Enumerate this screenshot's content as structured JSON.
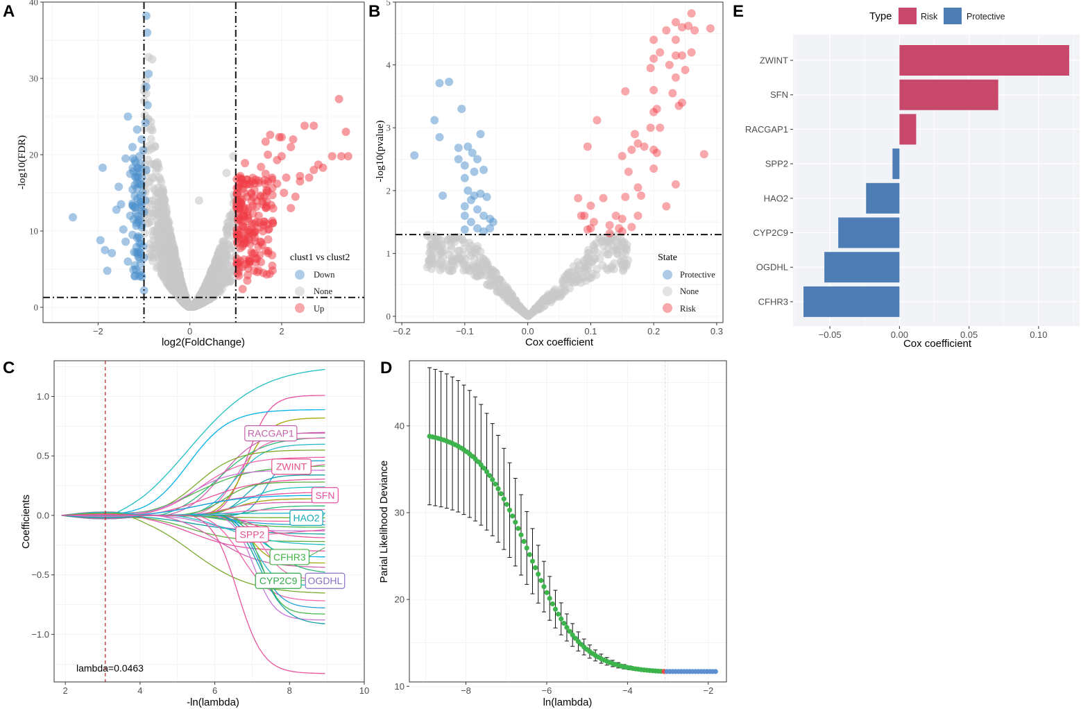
{
  "colors": {
    "down": "#4c8fcb",
    "up": "#ef3b45",
    "none": "#c8c8c8",
    "risk": "#c8486c",
    "protective": "#4e7db5",
    "cv_point": "#3cb44b",
    "cv_point_tail": "#5b8fd0",
    "cv_min": "#ef4b4b",
    "lambda_line": "#c0302e",
    "panel_bg_e": "#f1f3f6"
  },
  "chart_data": [
    {
      "panel": "A",
      "type": "scatter",
      "subtype": "volcano",
      "xlabel": "log2(FoldChange)",
      "ylabel": "-log10(FDR)",
      "xlim": [
        -3.2,
        3.8
      ],
      "ylim": [
        -2,
        40
      ],
      "xticks": [
        -2,
        0,
        2
      ],
      "yticks": [
        0,
        10,
        20,
        30,
        40
      ],
      "vlines": [
        -1,
        1
      ],
      "hline": 1.3,
      "legend": {
        "title": "clust1 vs clust2",
        "items": [
          "Down",
          "None",
          "Up"
        ]
      },
      "down_points": [
        [
          -2.55,
          11.8
        ],
        [
          -1.9,
          18.3
        ],
        [
          -1.95,
          8.8
        ],
        [
          -1.85,
          7.5
        ],
        [
          -1.8,
          4.8
        ],
        [
          -1.7,
          7.1
        ],
        [
          -1.6,
          12.8
        ],
        [
          -1.55,
          15.8
        ],
        [
          -1.5,
          13.5
        ],
        [
          -1.45,
          10.2
        ],
        [
          -1.4,
          19.5
        ],
        [
          -1.4,
          8.6
        ],
        [
          -1.35,
          6.0
        ],
        [
          -1.35,
          25.0
        ],
        [
          -1.3,
          17.5
        ],
        [
          -1.3,
          12.0
        ],
        [
          -1.25,
          21.0
        ],
        [
          -1.25,
          9.5
        ],
        [
          -1.2,
          14.6
        ],
        [
          -1.2,
          5.5
        ],
        [
          -1.15,
          23.3
        ],
        [
          -1.15,
          16.3
        ],
        [
          -1.12,
          11.2
        ],
        [
          -1.1,
          19.8
        ],
        [
          -1.1,
          7.2
        ],
        [
          -1.08,
          13.7
        ],
        [
          -1.05,
          22.0
        ],
        [
          -1.05,
          17.0
        ],
        [
          -1.05,
          10.5
        ],
        [
          -1.05,
          4.0
        ],
        [
          -1.03,
          15.0
        ],
        [
          -1.02,
          20.6
        ],
        [
          -1.02,
          8.0
        ],
        [
          -1.0,
          12.5
        ],
        [
          -0.95,
          38.2
        ],
        [
          -0.93,
          36.0
        ],
        [
          -0.9,
          30.6
        ],
        [
          -0.95,
          28.9
        ],
        [
          -0.92,
          26.5
        ],
        [
          -0.97,
          24.2
        ],
        [
          -0.95,
          18.0
        ],
        [
          -0.97,
          14.0
        ],
        [
          -1.0,
          6.5
        ],
        [
          -1.0,
          2.2
        ]
      ],
      "up_points": [
        [
          3.25,
          27.3
        ],
        [
          3.4,
          23.0
        ],
        [
          2.5,
          23.8
        ],
        [
          2.7,
          23.8
        ],
        [
          3.45,
          19.8
        ],
        [
          3.3,
          19.8
        ],
        [
          3.1,
          19.8
        ],
        [
          2.9,
          18.3
        ],
        [
          2.8,
          18.7
        ],
        [
          2.7,
          18.0
        ],
        [
          2.6,
          17.0
        ],
        [
          2.4,
          17.2
        ],
        [
          2.4,
          16.5
        ],
        [
          2.25,
          22.0
        ],
        [
          2.2,
          21.0
        ],
        [
          2.0,
          22.3
        ],
        [
          1.95,
          22.3
        ],
        [
          1.75,
          22.6
        ],
        [
          1.65,
          21.7
        ],
        [
          1.7,
          20.0
        ],
        [
          1.9,
          19.3
        ],
        [
          2.0,
          19.8
        ],
        [
          2.1,
          17.0
        ],
        [
          2.3,
          14.5
        ],
        [
          2.2,
          13.0
        ],
        [
          2.05,
          15.0
        ],
        [
          1.9,
          16.2
        ],
        [
          1.8,
          14.7
        ],
        [
          1.7,
          16.5
        ],
        [
          1.6,
          13.5
        ],
        [
          1.5,
          12.0
        ],
        [
          1.6,
          10.8
        ],
        [
          1.4,
          9.8
        ],
        [
          1.4,
          4.8
        ],
        [
          1.6,
          4.5
        ],
        [
          1.3,
          6.0
        ],
        [
          1.25,
          3.5
        ],
        [
          1.2,
          10.5
        ],
        [
          1.15,
          2.4
        ],
        [
          1.1,
          11.5
        ],
        [
          1.05,
          15.7
        ],
        [
          1.08,
          9.5
        ],
        [
          1.02,
          13.0
        ],
        [
          1.15,
          8.0
        ],
        [
          1.25,
          14.5
        ],
        [
          1.35,
          16.5
        ],
        [
          1.45,
          11.2
        ],
        [
          1.55,
          18.4
        ],
        [
          1.65,
          17.5
        ],
        [
          1.2,
          18.9
        ],
        [
          1.1,
          17.2
        ]
      ]
    },
    {
      "panel": "B",
      "type": "scatter",
      "subtype": "volcano",
      "xlabel": "Cox coefficient",
      "ylabel": "-log10(pvalue)",
      "xlim": [
        -0.21,
        0.31
      ],
      "ylim": [
        -0.1,
        5.0
      ],
      "xticks": [
        -0.2,
        -0.1,
        0.0,
        0.1,
        0.2,
        0.3
      ],
      "yticks": [
        0,
        1,
        2,
        3,
        4,
        5
      ],
      "hline": 1.3,
      "legend": {
        "title": "State",
        "items": [
          "Protective",
          "None",
          "Risk"
        ]
      },
      "protective_points": [
        [
          -0.18,
          2.56
        ],
        [
          -0.14,
          3.71
        ],
        [
          -0.125,
          3.73
        ],
        [
          -0.105,
          3.3
        ],
        [
          -0.148,
          3.12
        ],
        [
          -0.14,
          2.85
        ],
        [
          -0.135,
          1.92
        ],
        [
          -0.11,
          2.68
        ],
        [
          -0.095,
          2.7
        ],
        [
          -0.11,
          2.5
        ],
        [
          -0.1,
          2.4
        ],
        [
          -0.088,
          2.6
        ],
        [
          -0.075,
          2.9
        ],
        [
          -0.08,
          2.5
        ],
        [
          -0.07,
          2.33
        ],
        [
          -0.085,
          2.3
        ],
        [
          -0.1,
          2.2
        ],
        [
          -0.095,
          2.0
        ],
        [
          -0.085,
          1.92
        ],
        [
          -0.075,
          1.95
        ],
        [
          -0.065,
          1.9
        ],
        [
          -0.09,
          1.85
        ],
        [
          -0.1,
          1.75
        ],
        [
          -0.08,
          1.7
        ],
        [
          -0.07,
          1.6
        ],
        [
          -0.06,
          1.55
        ],
        [
          -0.1,
          1.6
        ],
        [
          -0.09,
          1.5
        ],
        [
          -0.08,
          1.4
        ],
        [
          -0.07,
          1.35
        ],
        [
          -0.055,
          1.5
        ],
        [
          -0.06,
          1.4
        ],
        [
          -0.1,
          1.38
        ]
      ],
      "risk_points": [
        [
          0.26,
          4.82
        ],
        [
          0.29,
          4.58
        ],
        [
          0.245,
          4.6
        ],
        [
          0.235,
          4.68
        ],
        [
          0.265,
          4.55
        ],
        [
          0.255,
          4.62
        ],
        [
          0.22,
          4.55
        ],
        [
          0.2,
          4.4
        ],
        [
          0.235,
          4.4
        ],
        [
          0.2,
          4.1
        ],
        [
          0.21,
          4.2
        ],
        [
          0.235,
          4.15
        ],
        [
          0.245,
          4.15
        ],
        [
          0.26,
          4.2
        ],
        [
          0.195,
          3.95
        ],
        [
          0.225,
          4.0
        ],
        [
          0.25,
          3.92
        ],
        [
          0.235,
          3.8
        ],
        [
          0.2,
          3.6
        ],
        [
          0.155,
          3.58
        ],
        [
          0.23,
          3.55
        ],
        [
          0.245,
          3.4
        ],
        [
          0.24,
          3.35
        ],
        [
          0.2,
          3.25
        ],
        [
          0.205,
          3.3
        ],
        [
          0.21,
          3.0
        ],
        [
          0.195,
          3.0
        ],
        [
          0.11,
          3.12
        ],
        [
          0.17,
          2.9
        ],
        [
          0.175,
          2.75
        ],
        [
          0.185,
          2.7
        ],
        [
          0.165,
          2.65
        ],
        [
          0.2,
          2.65
        ],
        [
          0.095,
          2.7
        ],
        [
          0.205,
          2.6
        ],
        [
          0.28,
          2.58
        ],
        [
          0.15,
          2.55
        ],
        [
          0.2,
          2.35
        ],
        [
          0.16,
          2.3
        ],
        [
          0.235,
          2.1
        ],
        [
          0.175,
          2.05
        ],
        [
          0.08,
          1.88
        ],
        [
          0.12,
          1.88
        ],
        [
          0.155,
          1.9
        ],
        [
          0.18,
          1.92
        ],
        [
          0.1,
          1.76
        ],
        [
          0.22,
          1.75
        ],
        [
          0.175,
          1.6
        ],
        [
          0.09,
          1.6
        ],
        [
          0.085,
          1.6
        ],
        [
          0.14,
          1.6
        ],
        [
          0.15,
          1.55
        ],
        [
          0.13,
          1.45
        ],
        [
          0.105,
          1.5
        ],
        [
          0.1,
          1.4
        ],
        [
          0.095,
          1.38
        ],
        [
          0.145,
          1.4
        ],
        [
          0.165,
          1.42
        ],
        [
          0.15,
          1.35
        ],
        [
          0.13,
          1.32
        ]
      ]
    },
    {
      "panel": "C",
      "type": "line",
      "subtype": "lasso coefficient paths",
      "xlabel": "-ln(lambda)",
      "ylabel": "Coefficients",
      "xlim": [
        1.7,
        10.0
      ],
      "ylim": [
        -1.4,
        1.3
      ],
      "xticks": [
        2,
        4,
        6,
        8,
        10
      ],
      "yticks": [
        -1.0,
        -0.5,
        0.0,
        0.5,
        1.0
      ],
      "lambda_line_x": 3.07,
      "annotation": "lambda=0.0463",
      "path_endpoints": [
        1.26,
        1.01,
        0.89,
        0.82,
        0.7,
        0.66,
        0.65,
        0.6,
        0.55,
        0.49,
        0.46,
        0.42,
        0.38,
        0.34,
        0.31,
        0.28,
        0.24,
        0.2,
        0.17,
        0.14,
        0.11,
        0.08,
        0.05,
        0.02,
        -0.02,
        -0.05,
        -0.08,
        -0.1,
        -0.13,
        -0.16,
        -0.19,
        -0.22,
        -0.25,
        -0.3,
        -0.35,
        -0.4,
        -0.44,
        -0.49,
        -0.54,
        -0.59,
        -0.66,
        -0.72,
        -0.78,
        -0.83,
        -0.88,
        -0.92,
        -1.33
      ],
      "labeled_genes": [
        {
          "gene": "RACGAP1",
          "end": 0.69
        },
        {
          "gene": "ZWINT",
          "end": 0.43
        },
        {
          "gene": "SFN",
          "end": 0.21
        },
        {
          "gene": "HAO2",
          "end": 0.02
        },
        {
          "gene": "SPP2",
          "end": -0.12
        },
        {
          "gene": "CFHR3",
          "end": -0.27
        },
        {
          "gene": "CYP2C9",
          "end": -0.52
        },
        {
          "gene": "OGDHL",
          "end": -0.55
        }
      ]
    },
    {
      "panel": "D",
      "type": "scatter",
      "subtype": "cross-validation curve with error bars",
      "xlabel": "ln(lambda)",
      "ylabel": "Parial Likelihood Deviance",
      "xlim": [
        -9.4,
        -1.55
      ],
      "ylim": [
        10.5,
        47.5
      ],
      "xticks": [
        -8,
        -6,
        -4,
        -2
      ],
      "yticks": [
        10,
        20,
        30,
        40
      ],
      "lambda_min_log": -3.07,
      "cv_x_range": [
        -8.9,
        -1.82
      ],
      "cv_points": 101,
      "cv_deviance_start": 38.8,
      "cv_deviance_end": 11.7,
      "error_start": 7.8,
      "error_end": 0.1
    },
    {
      "panel": "E",
      "type": "bar",
      "subtype": "horizontal",
      "xlabel": "Cox coefficient",
      "ylabel": "",
      "xlim": [
        -0.0765,
        0.1295
      ],
      "xticks": [
        -0.05,
        0.0,
        0.05,
        0.1
      ],
      "legend": {
        "title": "Type",
        "items": [
          "Risk",
          "Protective"
        ]
      },
      "categories": [
        "ZWINT",
        "SFN",
        "RACGAP1",
        "SPP2",
        "HAO2",
        "CYP2C9",
        "OGDHL",
        "CFHR3"
      ],
      "values": [
        0.122,
        0.071,
        0.012,
        -0.005,
        -0.024,
        -0.044,
        -0.054,
        -0.069
      ],
      "types": [
        "Risk",
        "Risk",
        "Risk",
        "Protective",
        "Protective",
        "Protective",
        "Protective",
        "Protective"
      ]
    }
  ]
}
